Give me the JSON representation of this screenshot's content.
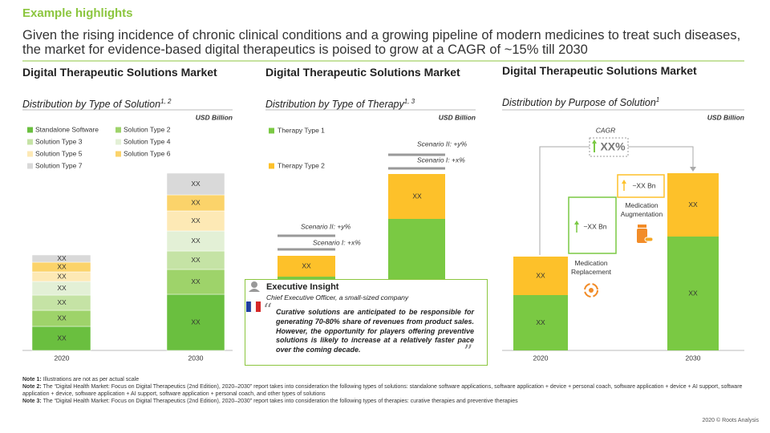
{
  "header": {
    "title": "Example highlights",
    "subtitle": "Given the rising incidence of chronic clinical conditions and a growing pipeline of modern medicines to treat such diseases, the market for evidence-based digital therapeutics is poised to grow at a CAGR of ~15% till 2030"
  },
  "panels": [
    {
      "title": "Digital Therapeutic Solutions Market",
      "subtitle": "Distribution by Type of Solution",
      "subtitle_note": "1, 2",
      "unit": "USD Billion",
      "legend": [
        "Standalone Software",
        "Solution Type 2",
        "Solution Type 3",
        "Solution Type 4",
        "Solution Type 5",
        "Solution Type 6",
        "Solution Type 7"
      ],
      "bars": [
        {
          "x_label": "2020",
          "segments": [
            "XX",
            "XX",
            "XX",
            "XX",
            "XX",
            "XX",
            "XX"
          ]
        },
        {
          "x_label": "2030",
          "segments": [
            "XX",
            "XX",
            "XX",
            "XX",
            "XX",
            "XX",
            "XX"
          ]
        }
      ]
    },
    {
      "title": "Digital Therapeutic Solutions Market",
      "subtitle": "Distribution by Type of Therapy",
      "subtitle_note": "1, 3",
      "unit": "USD Billion",
      "legend": [
        "Therapy Type 1",
        "Therapy Type 2"
      ],
      "bars": [
        {
          "segments": [
            "XX"
          ],
          "scenarios": [
            "Scenario II: +y%",
            "Scenario I: +x%"
          ]
        },
        {
          "segments": [
            "XX"
          ],
          "scenarios": [
            "Scenario II: +y%",
            "Scenario I: +x%"
          ]
        }
      ]
    },
    {
      "title": "Digital Therapeutic Solutions Market",
      "subtitle": "Distribution by Purpose of Solution",
      "subtitle_note": "1",
      "unit": "USD Billion",
      "cagr_label": "CAGR",
      "cagr_value": "XX%",
      "bars": [
        {
          "x_label": "2020",
          "segments": [
            "XX",
            "XX"
          ]
        },
        {
          "x_label": "2030",
          "segments": [
            "XX",
            "XX"
          ]
        }
      ],
      "bridge": [
        {
          "value": "~XX Bn",
          "label": "Medication Replacement"
        },
        {
          "value": "~XX Bn",
          "label": "Medication Augmentation"
        }
      ]
    }
  ],
  "insight": {
    "title": "Executive Insight",
    "source": "Chief Executive Officer, a small-sized company",
    "quote": "Curative solutions are anticipated to be responsible for generating 70-80% share of revenues from product sales. However, the opportunity for players offering preventive solutions is likely to increase at a relatively faster pace over the coming decade."
  },
  "notes": [
    {
      "label": "Note 1:",
      "text": "Illustrations are not as per actual scale"
    },
    {
      "label": "Note 2:",
      "text": "The “Digital Health Market: Focus on Digital Therapeutics (2nd Edition), 2020–2030” report takes into consideration the following types of solutions: standalone software applications, software application + device + personal coach, software application + device + AI support, software application + device, software application + AI support, software application + personal coach, and other types of solutions"
    },
    {
      "label": "Note 3:",
      "text": "The “Digital Health Market: Focus on Digital Therapeutics (2nd Edition), 2020–2030” report takes into consideration the following types of therapies: curative therapies and preventive therapies"
    }
  ],
  "footer": "2020 © Roots Analysis"
}
